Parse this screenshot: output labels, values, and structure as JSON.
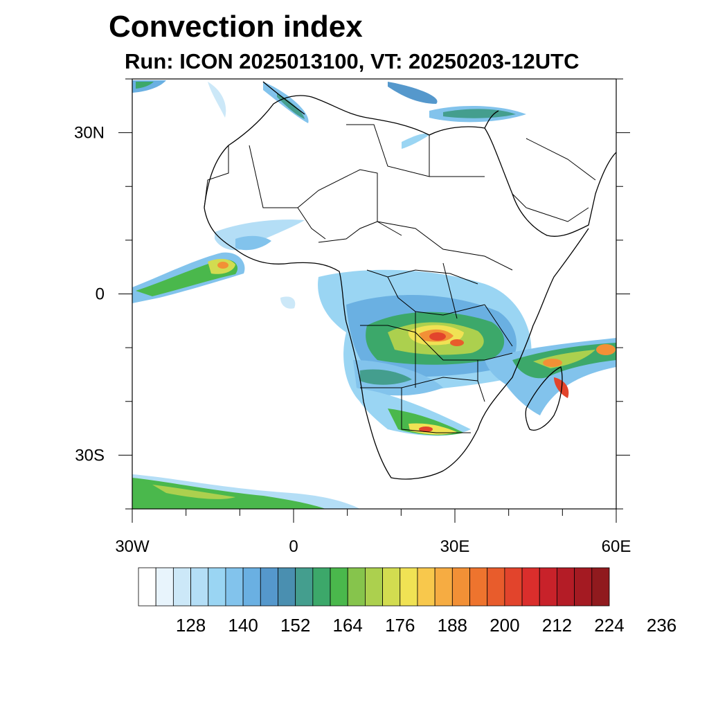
{
  "title": "Convection index",
  "subtitle": "Run: ICON 2025013100,  VT: 20250203-12UTC",
  "axes": {
    "lat_ticks": [
      {
        "label": "30N",
        "lat": 30
      },
      {
        "label": "0",
        "lat": 0
      },
      {
        "label": "30S",
        "lat": -30
      }
    ],
    "lon_ticks": [
      {
        "label": "30W",
        "lon": -30
      },
      {
        "label": "0",
        "lon": 0
      },
      {
        "label": "30E",
        "lon": 30
      },
      {
        "label": "60E",
        "lon": 60
      }
    ],
    "lon_range": [
      -30,
      60
    ],
    "lat_range": [
      -40,
      40
    ]
  },
  "colorbar": {
    "colors": [
      "#ffffff",
      "#e8f4fc",
      "#cce8f8",
      "#b4def6",
      "#9ad5f3",
      "#82c3ec",
      "#6ab0e2",
      "#5598cc",
      "#4a8fb0",
      "#449e8e",
      "#3ca86a",
      "#4ab84c",
      "#86c44c",
      "#acd04e",
      "#d2dc50",
      "#f0e254",
      "#f8c84c",
      "#f6ac42",
      "#f29036",
      "#ee742e",
      "#e85c2c",
      "#e2442c",
      "#da2e2c",
      "#c8222a",
      "#b41c26",
      "#a41a22",
      "#901a1e"
    ],
    "tick_labels": [
      "128",
      "140",
      "152",
      "164",
      "176",
      "188",
      "200",
      "212",
      "224",
      "236"
    ]
  }
}
